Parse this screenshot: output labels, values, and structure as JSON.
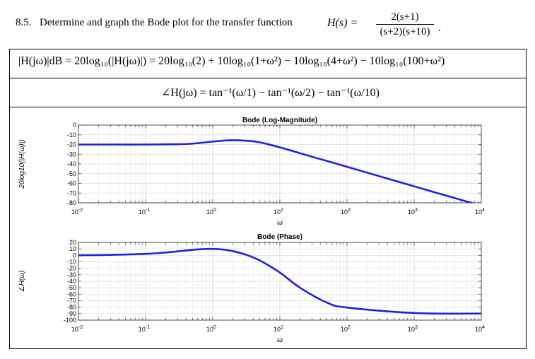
{
  "problem": {
    "number": "8.5.",
    "statement": "Determine and graph the Bode plot for the transfer function",
    "lhs": "H(s) =",
    "numerator": "2(s+1)",
    "denominator": "(s+2)(s+10)",
    "period": "."
  },
  "equations": {
    "magnitude": "|H(jω)|dB = 20log₁₀(|H(jω)|) = 20log₁₀(2) + 10log₁₀(1+ω²) − 10log₁₀(4+ω²) − 10log₁₀(100+ω²)",
    "phase": "∠H(jω) = tan⁻¹(ω/1) − tan⁻¹(ω/2) − tan⁻¹(ω/10)"
  },
  "chart_data": [
    {
      "type": "line",
      "title": "Bode (Log-Magnitude)",
      "xlabel": "ω",
      "ylabel": "20log10(|H(ω)|)",
      "xscale": "log",
      "xlim": [
        0.01,
        10000
      ],
      "ylim": [
        -80,
        0
      ],
      "xticks": [
        "10^-2",
        "10^-1",
        "10^0",
        "10^1",
        "10^2",
        "10^3",
        "10^4"
      ],
      "yticks": [
        0,
        -10,
        -20,
        -30,
        -40,
        -50,
        -60,
        -70,
        -80
      ],
      "grid": true,
      "color": "#1f1fe0",
      "x": [
        0.01,
        0.03,
        0.1,
        0.3,
        0.5,
        1,
        1.5,
        2,
        3,
        5,
        10,
        20,
        50,
        100,
        1000,
        10000
      ],
      "values": [
        -20.0,
        -20.0,
        -20.0,
        -19.7,
        -19.1,
        -17.0,
        -15.9,
        -15.6,
        -16.0,
        -17.7,
        -22.9,
        -29.0,
        -36.9,
        -42.9,
        -63.0,
        -83.0
      ]
    },
    {
      "type": "line",
      "title": "Bode (Phase)",
      "xlabel": "ω",
      "ylabel": "∠H(ω)",
      "xscale": "log",
      "xlim": [
        0.01,
        10000
      ],
      "ylim": [
        -100,
        20
      ],
      "xticks": [
        "10^-2",
        "10^-1",
        "10^0",
        "10^1",
        "10^2",
        "10^3",
        "10^4"
      ],
      "yticks": [
        20,
        10,
        0,
        -10,
        -20,
        -30,
        -40,
        -50,
        -60,
        -70,
        -80,
        -90,
        -100
      ],
      "grid": true,
      "color": "#1f1fe0",
      "x": [
        0.01,
        0.03,
        0.1,
        0.2,
        0.3,
        0.5,
        0.7,
        1,
        1.5,
        2,
        3,
        5,
        10,
        20,
        50,
        100,
        1000,
        10000
      ],
      "values": [
        0.2,
        0.7,
        2.3,
        4.4,
        6.2,
        8.5,
        9.6,
        10.0,
        8.7,
        6.5,
        1.6,
        -7.7,
        -26.6,
        -50.0,
        -72.8,
        -80.6,
        -89.0,
        -89.9
      ]
    }
  ]
}
